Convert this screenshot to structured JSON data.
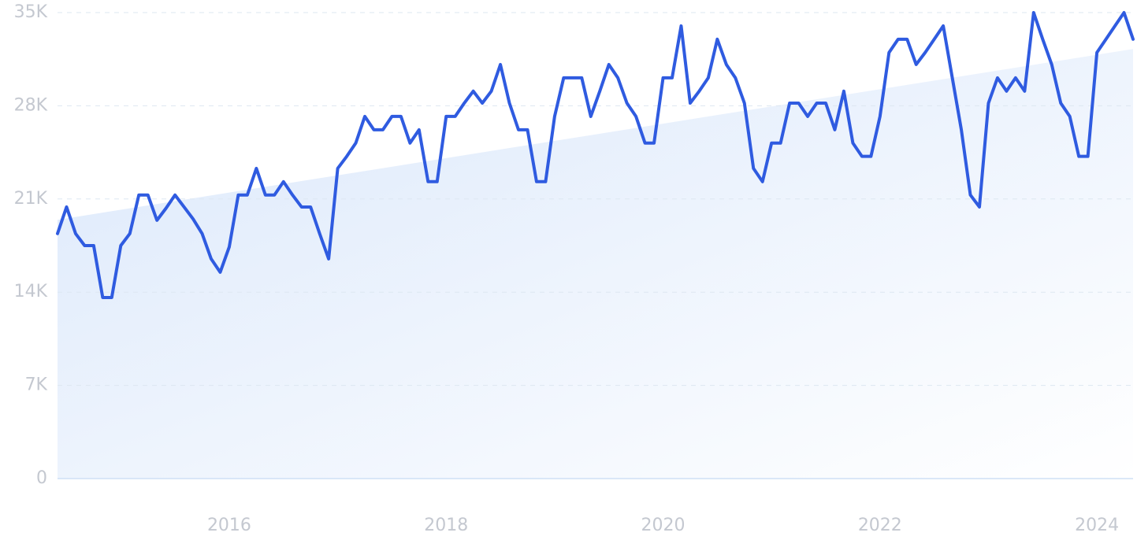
{
  "chart_data": {
    "type": "line",
    "categories": [
      null,
      null,
      null,
      null,
      null,
      null,
      null,
      null,
      null,
      null,
      null,
      null,
      null,
      null,
      null,
      null,
      null,
      null,
      null,
      "2016",
      null,
      null,
      null,
      null,
      null,
      null,
      null,
      null,
      null,
      null,
      null,
      null,
      null,
      null,
      null,
      null,
      null,
      null,
      null,
      null,
      null,
      null,
      null,
      "2018",
      null,
      null,
      null,
      null,
      null,
      null,
      null,
      null,
      null,
      null,
      null,
      null,
      null,
      null,
      null,
      null,
      null,
      null,
      null,
      null,
      null,
      null,
      null,
      "2020",
      null,
      null,
      null,
      null,
      null,
      null,
      null,
      null,
      null,
      null,
      null,
      null,
      null,
      null,
      null,
      null,
      null,
      null,
      null,
      null,
      null,
      null,
      null,
      "2022",
      null,
      null,
      null,
      null,
      null,
      null,
      null,
      null,
      null,
      null,
      null,
      null,
      null,
      null,
      null,
      null,
      null,
      null,
      null,
      null,
      null,
      null,
      null,
      "2024",
      null,
      null,
      null,
      null
    ],
    "values": [
      18400,
      20400,
      18400,
      17500,
      17500,
      13600,
      13600,
      17500,
      18400,
      21300,
      21300,
      19400,
      20300,
      21300,
      20400,
      19500,
      18400,
      16500,
      15500,
      17400,
      21300,
      21300,
      23300,
      21300,
      21300,
      22300,
      21300,
      20400,
      20400,
      18400,
      16500,
      23300,
      24200,
      25200,
      27200,
      26200,
      26200,
      27200,
      27200,
      25200,
      26200,
      22300,
      22300,
      27200,
      27200,
      28200,
      29100,
      28200,
      29100,
      31100,
      28200,
      26200,
      26200,
      22300,
      22300,
      27200,
      30100,
      30100,
      30100,
      27200,
      29100,
      31100,
      30100,
      28200,
      27200,
      25200,
      25200,
      30100,
      30100,
      34000,
      28200,
      29100,
      30100,
      33000,
      31100,
      30100,
      28200,
      23300,
      22300,
      25200,
      25200,
      28200,
      28200,
      27200,
      28200,
      28200,
      26200,
      29100,
      25200,
      24200,
      24200,
      27200,
      32000,
      33000,
      33000,
      31100,
      32000,
      33000,
      34000,
      30100,
      26200,
      21300,
      20400,
      28200,
      30100,
      29100,
      30100,
      29100,
      35000,
      33000,
      31100,
      28200,
      27200,
      24200,
      24200,
      32000,
      33000,
      34000,
      35000,
      33000
    ],
    "color": "#2f5be0",
    "ylim": [
      0,
      35000
    ],
    "yticks": [
      0,
      {
        "value": 7000,
        "label": "7K"
      },
      {
        "value": 14000,
        "label": "14K"
      },
      {
        "value": 21000,
        "label": "21K"
      },
      {
        "value": 28000,
        "label": "28K"
      },
      {
        "value": 35000,
        "label": "35K"
      }
    ],
    "grid": true
  }
}
